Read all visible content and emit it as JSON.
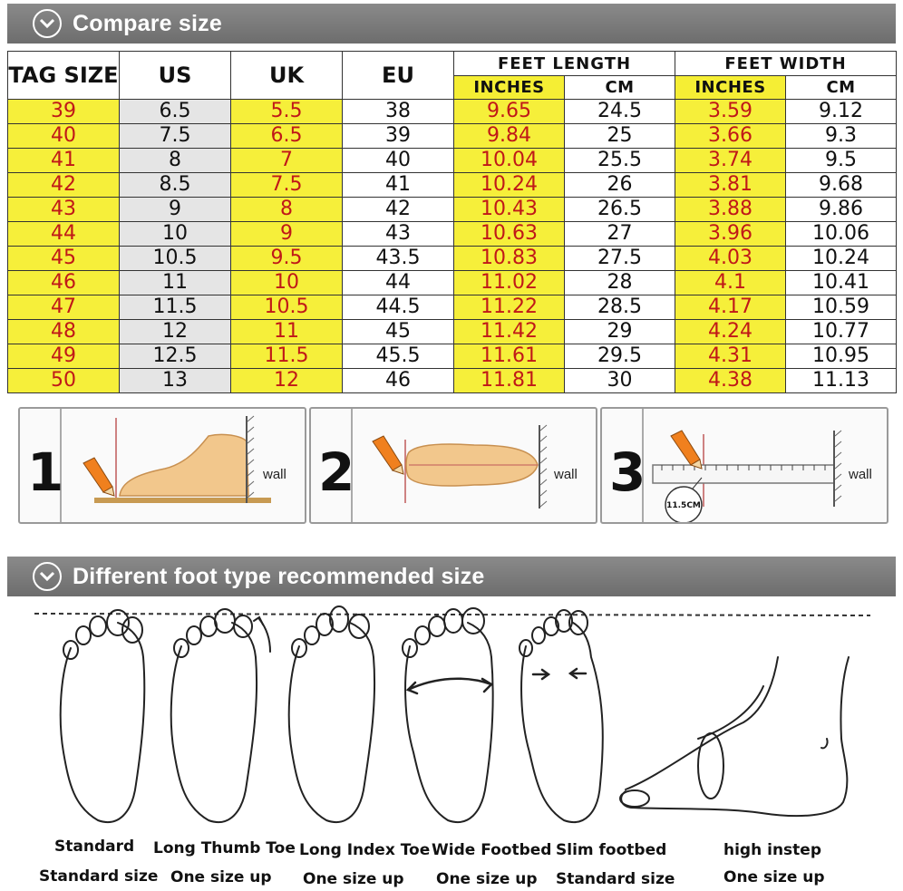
{
  "section1": {
    "title": "Compare size",
    "icon": "chevron-down-icon"
  },
  "table": {
    "headers": {
      "tag_size": "TAG SIZE",
      "us": "US",
      "uk": "UK",
      "eu": "EU",
      "feet_length": "FEET LENGTH",
      "feet_width": "FEET WIDTH",
      "inches": "INCHES",
      "cm": "CM"
    },
    "rows": [
      [
        "39",
        "6.5",
        "5.5",
        "38",
        "9.65",
        "24.5",
        "3.59",
        "9.12"
      ],
      [
        "40",
        "7.5",
        "6.5",
        "39",
        "9.84",
        "25",
        "3.66",
        "9.3"
      ],
      [
        "41",
        "8",
        "7",
        "40",
        "10.04",
        "25.5",
        "3.74",
        "9.5"
      ],
      [
        "42",
        "8.5",
        "7.5",
        "41",
        "10.24",
        "26",
        "3.81",
        "9.68"
      ],
      [
        "43",
        "9",
        "8",
        "42",
        "10.43",
        "26.5",
        "3.88",
        "9.86"
      ],
      [
        "44",
        "10",
        "9",
        "43",
        "10.63",
        "27",
        "3.96",
        "10.06"
      ],
      [
        "45",
        "10.5",
        "9.5",
        "43.5",
        "10.83",
        "27.5",
        "4.03",
        "10.24"
      ],
      [
        "46",
        "11",
        "10",
        "44",
        "11.02",
        "28",
        "4.1",
        "10.41"
      ],
      [
        "47",
        "11.5",
        "10.5",
        "44.5",
        "11.22",
        "28.5",
        "4.17",
        "10.59"
      ],
      [
        "48",
        "12",
        "11",
        "45",
        "11.42",
        "29",
        "4.24",
        "10.77"
      ],
      [
        "49",
        "12.5",
        "11.5",
        "45.5",
        "11.61",
        "29.5",
        "4.31",
        "10.95"
      ],
      [
        "50",
        "13",
        "12",
        "46",
        "11.81",
        "30",
        "4.38",
        "11.13"
      ]
    ],
    "colors": {
      "yellow": "#f6ef3a",
      "red_text": "#c01818",
      "gray": "#e5e5e5"
    }
  },
  "steps": [
    {
      "number": "1",
      "wall": "wall",
      "icon": "pencil-icon"
    },
    {
      "number": "2",
      "wall": "wall",
      "icon": "pencil-icon"
    },
    {
      "number": "3",
      "wall": "wall",
      "icon": "pencil-icon",
      "ruler_reading": "11.5CM"
    }
  ],
  "section2": {
    "title": "Different foot type recommended size",
    "icon": "chevron-down-icon"
  },
  "foot_types": [
    {
      "name": "Standard",
      "advice": "Standard size"
    },
    {
      "name": "Long Thumb Toe",
      "advice": "One size up"
    },
    {
      "name": "Long Index Toe",
      "advice": "One size up"
    },
    {
      "name": "Wide Footbed",
      "advice": "One size up"
    },
    {
      "name": "Slim footbed",
      "advice": "Standard size"
    },
    {
      "name": "high instep",
      "advice": "One size up"
    }
  ]
}
